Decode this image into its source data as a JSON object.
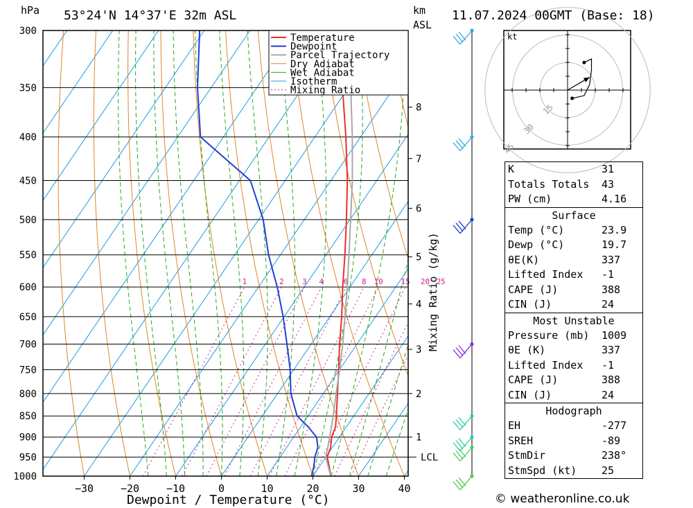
{
  "header": {
    "hpa_unit": "hPa",
    "location": "53°24'N  14°37'E  32m  ASL",
    "km_unit": "km",
    "asl_unit": "ASL",
    "datetime": "11.07.2024  00GMT  (Base: 18)"
  },
  "chart_data": {
    "type": "skew-t",
    "xlabel": "Dewpoint / Temperature (°C)",
    "ylabel": "hPa",
    "mixing_ratio_axis_label": "Mixing Ratio (g/kg)",
    "x_ticks": [
      -30,
      -20,
      -10,
      0,
      10,
      20,
      30,
      40
    ],
    "pressure_levels": [
      300,
      350,
      400,
      450,
      500,
      550,
      600,
      650,
      700,
      750,
      800,
      850,
      900,
      950,
      1000
    ],
    "height_km_ticks": [
      {
        "label": "8",
        "p": 369
      },
      {
        "label": "7",
        "p": 424
      },
      {
        "label": "6",
        "p": 485
      },
      {
        "label": "5",
        "p": 553
      },
      {
        "label": "4",
        "p": 628
      },
      {
        "label": "3",
        "p": 710
      },
      {
        "label": "2",
        "p": 800
      },
      {
        "label": "1",
        "p": 900
      },
      {
        "label": "LCL",
        "p": 950
      }
    ],
    "mixing_ratio_labels": [
      "1",
      "2",
      "3",
      "4",
      "6",
      "8",
      "10",
      "15",
      "20",
      "25"
    ],
    "mixing_ratio_values": [
      1,
      2,
      3,
      4,
      6,
      8,
      10,
      15,
      20,
      25
    ],
    "legend": [
      "Temperature",
      "Dewpoint",
      "Parcel Trajectory",
      "Dry Adiabat",
      "Wet Adiabat",
      "Isotherm",
      "Mixing Ratio"
    ],
    "series": [
      {
        "name": "Temperature",
        "color": "#e8302a",
        "points": [
          {
            "p": 1000,
            "t": 23.9
          },
          {
            "p": 975,
            "t": 22.2
          },
          {
            "p": 950,
            "t": 20.3
          },
          {
            "p": 925,
            "t": 19.6
          },
          {
            "p": 900,
            "t": 18.3
          },
          {
            "p": 875,
            "t": 17.6
          },
          {
            "p": 850,
            "t": 16.2
          },
          {
            "p": 800,
            "t": 13.1
          },
          {
            "p": 750,
            "t": 9.8
          },
          {
            "p": 700,
            "t": 6.2
          },
          {
            "p": 650,
            "t": 2.6
          },
          {
            "p": 600,
            "t": -1.6
          },
          {
            "p": 550,
            "t": -5.9
          },
          {
            "p": 500,
            "t": -10.8
          },
          {
            "p": 450,
            "t": -16.4
          },
          {
            "p": 400,
            "t": -23.2
          },
          {
            "p": 350,
            "t": -31.3
          },
          {
            "p": 300,
            "t": -40.5
          }
        ]
      },
      {
        "name": "Dewpoint",
        "color": "#1f3fd6",
        "points": [
          {
            "p": 1000,
            "t": 19.7
          },
          {
            "p": 975,
            "t": 18.8
          },
          {
            "p": 950,
            "t": 17.6
          },
          {
            "p": 925,
            "t": 16.8
          },
          {
            "p": 900,
            "t": 15.0
          },
          {
            "p": 875,
            "t": 11.6
          },
          {
            "p": 850,
            "t": 7.6
          },
          {
            "p": 800,
            "t": 2.9
          },
          {
            "p": 750,
            "t": -0.8
          },
          {
            "p": 700,
            "t": -5.3
          },
          {
            "p": 650,
            "t": -10.2
          },
          {
            "p": 600,
            "t": -15.9
          },
          {
            "p": 550,
            "t": -22.6
          },
          {
            "p": 500,
            "t": -29.0
          },
          {
            "p": 450,
            "t": -37.6
          },
          {
            "p": 400,
            "t": -55.0
          },
          {
            "p": 350,
            "t": -63.0
          },
          {
            "p": 300,
            "t": -71.0
          }
        ]
      },
      {
        "name": "Parcel Trajectory",
        "color": "#a8a8a8",
        "points": [
          {
            "p": 1000,
            "t": 23.9
          },
          {
            "p": 950,
            "t": 20.0
          },
          {
            "p": 900,
            "t": 17.9
          },
          {
            "p": 850,
            "t": 15.5
          },
          {
            "p": 800,
            "t": 12.8
          },
          {
            "p": 750,
            "t": 10.0
          },
          {
            "p": 700,
            "t": 6.9
          },
          {
            "p": 650,
            "t": 3.3
          },
          {
            "p": 600,
            "t": -0.6
          },
          {
            "p": 550,
            "t": -5.0
          },
          {
            "p": 500,
            "t": -9.9
          },
          {
            "p": 450,
            "t": -15.3
          },
          {
            "p": 400,
            "t": -21.8
          },
          {
            "p": 350,
            "t": -29.5
          },
          {
            "p": 300,
            "t": -38.5
          }
        ]
      }
    ],
    "wind_barbs": [
      {
        "p": 300,
        "color": "#33aadd"
      },
      {
        "p": 400,
        "color": "#33aadd"
      },
      {
        "p": 500,
        "color": "#1f3fd6"
      },
      {
        "p": 700,
        "color": "#8a2be2"
      },
      {
        "p": 850,
        "color": "#33ccaa"
      },
      {
        "p": 900,
        "color": "#33ccaa"
      },
      {
        "p": 925,
        "color": "#44cc66"
      },
      {
        "p": 1000,
        "color": "#44cc44"
      }
    ],
    "hodograph": {
      "unit_label": "kt",
      "ring_labels": [
        "15",
        "30",
        "45"
      ],
      "points": [
        {
          "u": 2.5,
          "v": -4.5
        },
        {
          "u": 9,
          "v": -3
        },
        {
          "u": 12,
          "v": 3
        },
        {
          "u": 13,
          "v": 11
        },
        {
          "u": 13,
          "v": 17
        },
        {
          "u": 9,
          "v": 15
        }
      ],
      "storm_motion": {
        "u": 12,
        "v": 7
      }
    }
  },
  "stats": {
    "top": [
      {
        "label": "K",
        "value": "31"
      },
      {
        "label": "Totals Totals",
        "value": "43"
      },
      {
        "label": "PW (cm)",
        "value": "4.16"
      }
    ],
    "surface": {
      "title": "Surface",
      "rows": [
        {
          "label": "Temp (°C)",
          "value": "23.9"
        },
        {
          "label": "Dewp (°C)",
          "value": "19.7"
        },
        {
          "label": "θE(K)",
          "value": "337"
        },
        {
          "label": "Lifted Index",
          "value": "-1"
        },
        {
          "label": "CAPE (J)",
          "value": "388"
        },
        {
          "label": "CIN (J)",
          "value": "24"
        }
      ]
    },
    "most_unstable": {
      "title": "Most Unstable",
      "rows": [
        {
          "label": "Pressure (mb)",
          "value": "1009"
        },
        {
          "label": "θE (K)",
          "value": "337"
        },
        {
          "label": "Lifted Index",
          "value": "-1"
        },
        {
          "label": "CAPE (J)",
          "value": "388"
        },
        {
          "label": "CIN (J)",
          "value": "24"
        }
      ]
    },
    "hodograph": {
      "title": "Hodograph",
      "rows": [
        {
          "label": "EH",
          "value": "-277"
        },
        {
          "label": "SREH",
          "value": "-89"
        },
        {
          "label": "StmDir",
          "value": "238°"
        },
        {
          "label": "StmSpd (kt)",
          "value": "25"
        }
      ]
    }
  },
  "credit": "© weatheronline.co.uk",
  "colors": {
    "temperature": "#e8302a",
    "dewpoint": "#1f3fd6",
    "parcel": "#a8a8a8",
    "dry_adiabat": "#e0842a",
    "wet_adiabat": "#22aa22",
    "isotherm": "#1e9be0",
    "mixing_ratio": "#cc1f8a"
  }
}
